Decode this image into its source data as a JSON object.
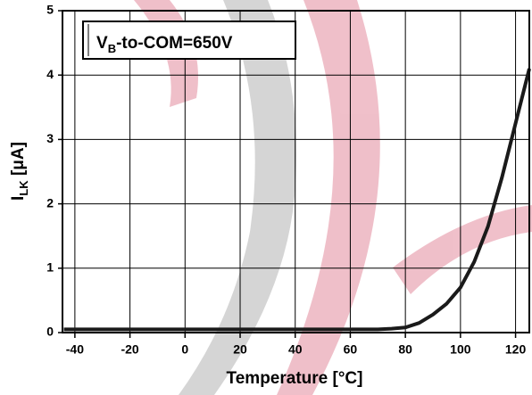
{
  "chart_data": {
    "type": "line",
    "x_label": "Temperature [°C]",
    "y_label_main": "I",
    "y_label_sub": "LK",
    "y_label_rest": " [μA]",
    "annotation_main": "V",
    "annotation_sub": "B",
    "annotation_rest": "-to-COM=650V",
    "xlim": [
      -44.5,
      125
    ],
    "xticks": [
      -40,
      -20,
      0,
      20,
      40,
      60,
      80,
      100,
      120
    ],
    "ylim": [
      0,
      5
    ],
    "yticks": [
      0,
      1,
      2,
      3,
      4,
      5
    ],
    "grid": true,
    "x": [
      -44,
      -40,
      -20,
      0,
      20,
      40,
      60,
      70,
      75,
      80,
      85,
      90,
      95,
      100,
      105,
      110,
      115,
      120,
      125
    ],
    "series": [
      {
        "color": "#1a1a1a",
        "values": [
          0.05,
          0.05,
          0.05,
          0.05,
          0.05,
          0.05,
          0.05,
          0.05,
          0.06,
          0.08,
          0.15,
          0.28,
          0.45,
          0.7,
          1.1,
          1.65,
          2.4,
          3.25,
          4.1
        ]
      }
    ]
  }
}
